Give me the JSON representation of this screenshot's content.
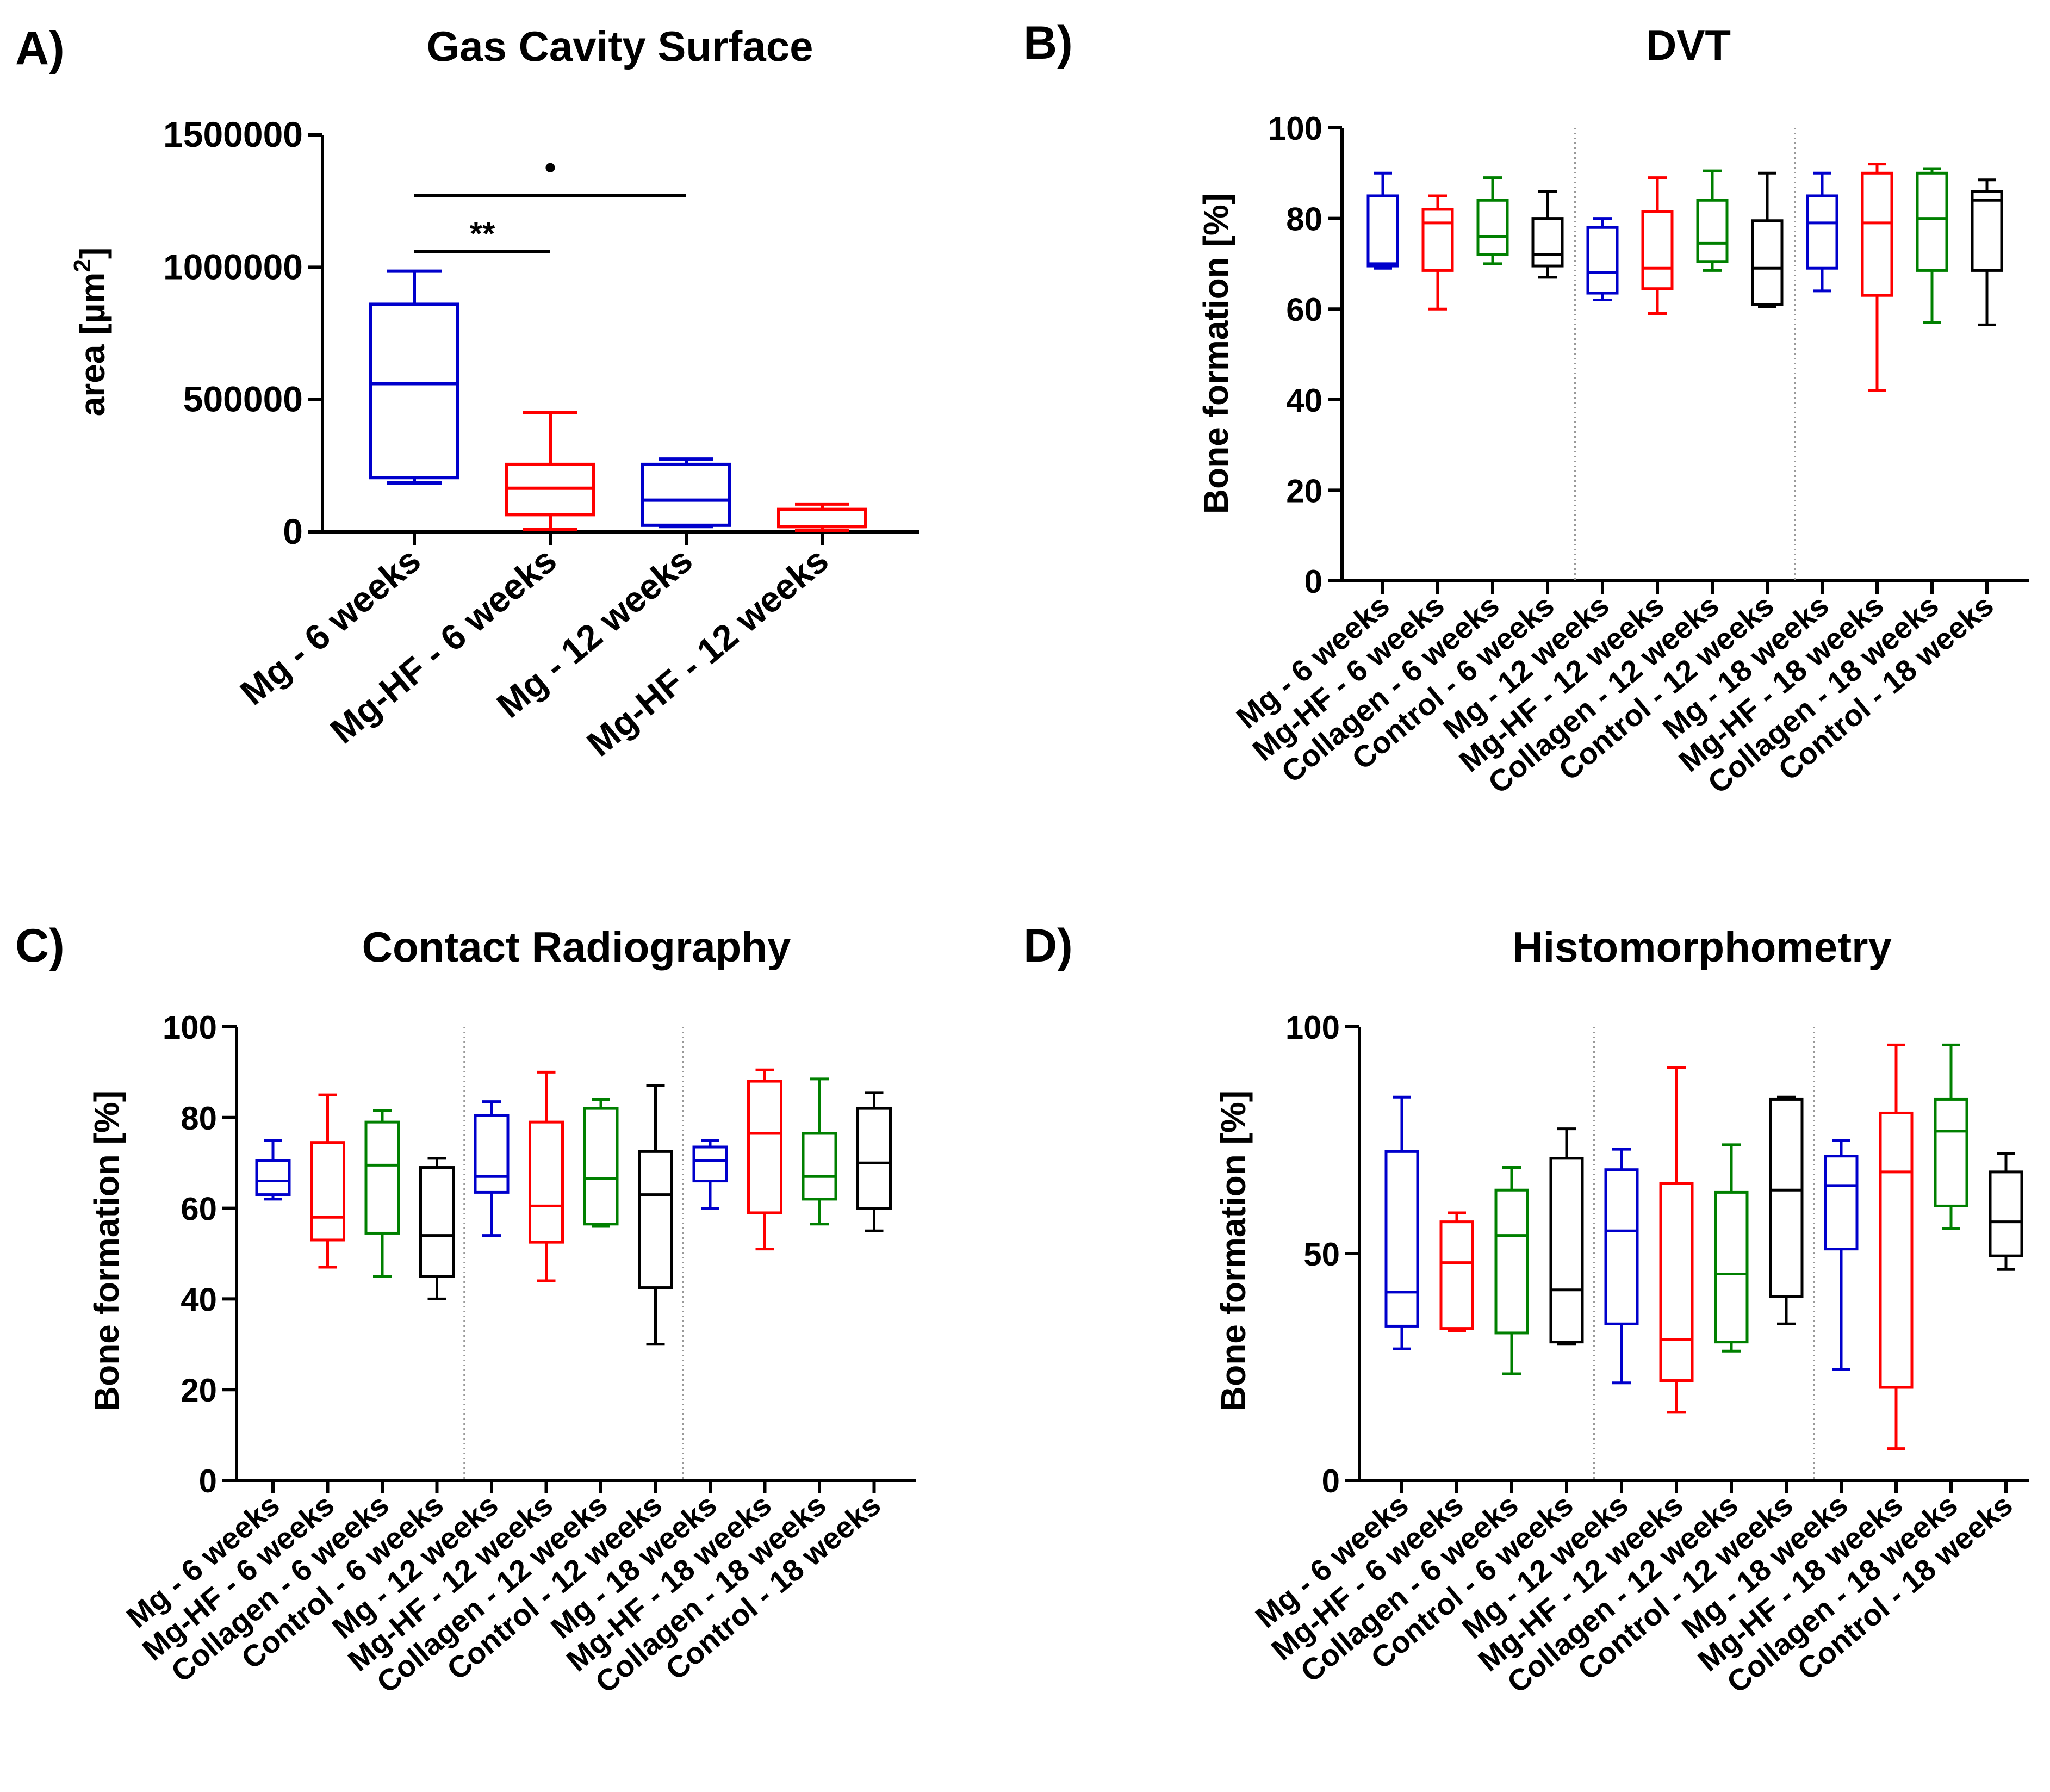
{
  "chart_data": [
    {
      "type": "box",
      "panel": "A)",
      "title": "Gas Cavity Surface",
      "xlabel": "",
      "ylabel": "area [µm²]",
      "ylim": [
        0,
        1500000
      ],
      "yticks": [
        0,
        500000,
        1000000,
        1500000
      ],
      "ytick_labels": [
        "0",
        "500000",
        "1000000",
        "1500000"
      ],
      "categories": [
        "Mg - 6 weeks",
        "Mg-HF - 6 weeks",
        "Mg - 12 weeks",
        "Mg-HF - 12 weeks"
      ],
      "colors": [
        "#0000cc",
        "#ff0000",
        "#0000cc",
        "#ff0000"
      ],
      "boxes": [
        {
          "min": 185000,
          "q1": 205000,
          "median": 560000,
          "q3": 860000,
          "max": 985000
        },
        {
          "min": 10000,
          "q1": 65000,
          "median": 165000,
          "q3": 255000,
          "max": 450000
        },
        {
          "min": 20000,
          "q1": 25000,
          "median": 120000,
          "q3": 255000,
          "max": 275000
        },
        {
          "min": 5000,
          "q1": 20000,
          "median": 20000,
          "q3": 85000,
          "max": 105000
        }
      ],
      "annotations": [
        {
          "from": 0,
          "to": 1,
          "y": 1060000,
          "label": "**"
        },
        {
          "from": 0,
          "to": 2,
          "y": 1270000,
          "label": "•"
        }
      ]
    },
    {
      "type": "box",
      "panel": "B)",
      "title": "DVT",
      "xlabel": "",
      "ylabel": "Bone formation [%]",
      "ylim": [
        0,
        100
      ],
      "yticks": [
        0,
        20,
        40,
        60,
        80,
        100
      ],
      "ytick_labels": [
        "0",
        "20",
        "40",
        "60",
        "80",
        "100"
      ],
      "dividers_after": [
        3,
        7
      ],
      "categories": [
        "Mg - 6 weeks",
        "Mg-HF - 6 weeks",
        "Collagen - 6 weeks",
        "Control - 6 weeks",
        "Mg - 12 weeks",
        "Mg-HF - 12 weeks",
        "Collagen - 12 weeks",
        "Control - 12 weeks",
        "Mg - 18 weeks",
        "Mg-HF - 18 weeks",
        "Collagen - 18 weeks",
        "Control - 18 weeks"
      ],
      "colors": [
        "#0000cc",
        "#ff0000",
        "#008000",
        "#000000",
        "#0000cc",
        "#ff0000",
        "#008000",
        "#000000",
        "#0000cc",
        "#ff0000",
        "#008000",
        "#000000"
      ],
      "boxes": [
        {
          "min": 69,
          "q1": 69.5,
          "median": 70,
          "q3": 85,
          "max": 90
        },
        {
          "min": 60,
          "q1": 68.5,
          "median": 79,
          "q3": 82,
          "max": 85
        },
        {
          "min": 70,
          "q1": 72,
          "median": 76,
          "q3": 84,
          "max": 89
        },
        {
          "min": 67,
          "q1": 69.5,
          "median": 72,
          "q3": 80,
          "max": 86
        },
        {
          "min": 62,
          "q1": 63.5,
          "median": 68,
          "q3": 78,
          "max": 80
        },
        {
          "min": 59,
          "q1": 64.5,
          "median": 69,
          "q3": 81.5,
          "max": 89
        },
        {
          "min": 68.5,
          "q1": 70.5,
          "median": 74.5,
          "q3": 84,
          "max": 90.5
        },
        {
          "min": 60.5,
          "q1": 61,
          "median": 69,
          "q3": 79.5,
          "max": 90
        },
        {
          "min": 64,
          "q1": 69,
          "median": 79,
          "q3": 85,
          "max": 90
        },
        {
          "min": 42,
          "q1": 63,
          "median": 79,
          "q3": 90,
          "max": 92
        },
        {
          "min": 57,
          "q1": 68.5,
          "median": 80,
          "q3": 90,
          "max": 91
        },
        {
          "min": 56.5,
          "q1": 68.5,
          "median": 84,
          "q3": 86,
          "max": 88.5
        }
      ]
    },
    {
      "type": "box",
      "panel": "C)",
      "title": "Contact Radiography",
      "xlabel": "",
      "ylabel": "Bone formation [%]",
      "ylim": [
        0,
        100
      ],
      "yticks": [
        0,
        20,
        40,
        60,
        80,
        100
      ],
      "ytick_labels": [
        "0",
        "20",
        "40",
        "60",
        "80",
        "100"
      ],
      "dividers_after": [
        3,
        7
      ],
      "categories": [
        "Mg - 6 weeks",
        "Mg-HF - 6 weeks",
        "Collagen - 6 weeks",
        "Control - 6 weeks",
        "Mg - 12 weeks",
        "Mg-HF - 12 weeks",
        "Collagen - 12 weeks",
        "Control - 12 weeks",
        "Mg - 18 weeks",
        "Mg-HF - 18 weeks",
        "Collagen - 18 weeks",
        "Control - 18 weeks"
      ],
      "colors": [
        "#0000cc",
        "#ff0000",
        "#008000",
        "#000000",
        "#0000cc",
        "#ff0000",
        "#008000",
        "#000000",
        "#0000cc",
        "#ff0000",
        "#008000",
        "#000000"
      ],
      "boxes": [
        {
          "min": 62,
          "q1": 63,
          "median": 66,
          "q3": 70.5,
          "max": 75
        },
        {
          "min": 47,
          "q1": 53,
          "median": 58,
          "q3": 74.5,
          "max": 85
        },
        {
          "min": 45,
          "q1": 54.5,
          "median": 69.5,
          "q3": 79,
          "max": 81.5
        },
        {
          "min": 40,
          "q1": 45,
          "median": 54,
          "q3": 69,
          "max": 71
        },
        {
          "min": 54,
          "q1": 63.5,
          "median": 67,
          "q3": 80.5,
          "max": 83.5
        },
        {
          "min": 44,
          "q1": 52.5,
          "median": 60.5,
          "q3": 79,
          "max": 90
        },
        {
          "min": 56,
          "q1": 56.5,
          "median": 66.5,
          "q3": 82,
          "max": 84
        },
        {
          "min": 30,
          "q1": 42.5,
          "median": 63,
          "q3": 72.5,
          "max": 87
        },
        {
          "min": 60,
          "q1": 66,
          "median": 70.5,
          "q3": 73.5,
          "max": 75
        },
        {
          "min": 51,
          "q1": 59,
          "median": 76.5,
          "q3": 88,
          "max": 90.5
        },
        {
          "min": 56.5,
          "q1": 62,
          "median": 67,
          "q3": 76.5,
          "max": 88.5
        },
        {
          "min": 55,
          "q1": 60,
          "median": 70,
          "q3": 82,
          "max": 85.5
        }
      ]
    },
    {
      "type": "box",
      "panel": "D)",
      "title": "Histomorphometry",
      "xlabel": "",
      "ylabel": "Bone formation [%]",
      "ylim": [
        0,
        100
      ],
      "yticks": [
        0,
        50,
        100
      ],
      "ytick_labels": [
        "0",
        "50",
        "100"
      ],
      "dividers_after": [
        3,
        7
      ],
      "categories": [
        "Mg - 6 weeks",
        "Mg-HF - 6 weeks",
        "Collagen - 6 weeks",
        "Control - 6 weeks",
        "Mg - 12 weeks",
        "Mg-HF - 12 weeks",
        "Collagen - 12 weeks",
        "Control - 12 weeks",
        "Mg - 18 weeks",
        "Mg-HF - 18 weeks",
        "Collagen - 18 weeks",
        "Control - 18 weeks"
      ],
      "colors": [
        "#0000cc",
        "#ff0000",
        "#008000",
        "#000000",
        "#0000cc",
        "#ff0000",
        "#008000",
        "#000000",
        "#0000cc",
        "#ff0000",
        "#008000",
        "#000000"
      ],
      "boxes": [
        {
          "min": 29,
          "q1": 34,
          "median": 41.5,
          "q3": 72.5,
          "max": 84.5
        },
        {
          "min": 33,
          "q1": 33.5,
          "median": 48,
          "q3": 57,
          "max": 59
        },
        {
          "min": 23.5,
          "q1": 32.5,
          "median": 54,
          "q3": 64,
          "max": 69
        },
        {
          "min": 30,
          "q1": 30.5,
          "median": 42,
          "q3": 71,
          "max": 77.5
        },
        {
          "min": 21.5,
          "q1": 34.5,
          "median": 55,
          "q3": 68.5,
          "max": 73
        },
        {
          "min": 15,
          "q1": 22,
          "median": 31,
          "q3": 65.5,
          "max": 91
        },
        {
          "min": 28.5,
          "q1": 30.5,
          "median": 45.5,
          "q3": 63.5,
          "max": 74
        },
        {
          "min": 34.5,
          "q1": 40.5,
          "median": 64,
          "q3": 84,
          "max": 84.5
        },
        {
          "min": 24.5,
          "q1": 51,
          "median": 65,
          "q3": 71.5,
          "max": 75
        },
        {
          "min": 7,
          "q1": 20.5,
          "median": 68,
          "q3": 81,
          "max": 96
        },
        {
          "min": 55.5,
          "q1": 60.5,
          "median": 77,
          "q3": 84,
          "max": 96
        },
        {
          "min": 46.5,
          "q1": 49.5,
          "median": 57,
          "q3": 68,
          "max": 72
        }
      ]
    }
  ]
}
